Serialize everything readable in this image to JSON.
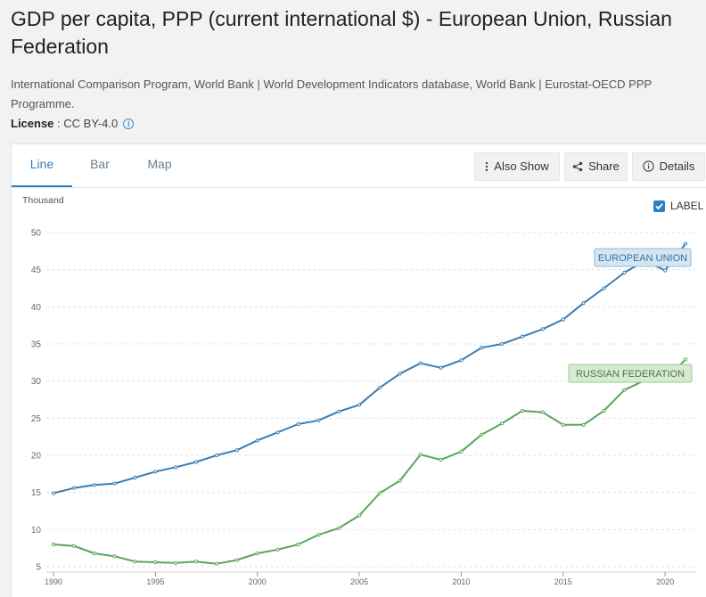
{
  "header": {
    "title": "GDP per capita, PPP (current international $) - European Union, Russian Federation",
    "source": "International Comparison Program, World Bank | World Development Indicators database, World Bank | Eurostat-OECD PPP Programme.",
    "license_label": "License",
    "license_value": " : CC BY-4.0"
  },
  "tabs": [
    {
      "label": "Line"
    },
    {
      "label": "Bar"
    },
    {
      "label": "Map"
    }
  ],
  "toolbar": {
    "also_show": "Also Show",
    "share": "Share",
    "details": "Details"
  },
  "label_toggle": {
    "text": "LABEL",
    "checked": true
  },
  "colors": {
    "eu": "#3a7db3",
    "ru": "#5aa55a",
    "eu_label_bg": "#d5e6f3",
    "ru_label_bg": "#d6ead2"
  },
  "chart_data": {
    "type": "line",
    "title": "GDP per capita, PPP (current international $) - European Union, Russian Federation",
    "ylabel": "Thousand",
    "xlabel": "",
    "ylim": [
      5,
      50
    ],
    "xlim": [
      1990,
      2021
    ],
    "y_ticks": [
      5,
      10,
      15,
      20,
      25,
      30,
      35,
      40,
      45,
      50
    ],
    "x_ticks": [
      1990,
      1995,
      2000,
      2005,
      2010,
      2015,
      2020
    ],
    "grid": true,
    "x": [
      1990,
      1991,
      1992,
      1993,
      1994,
      1995,
      1996,
      1997,
      1998,
      1999,
      2000,
      2001,
      2002,
      2003,
      2004,
      2005,
      2006,
      2007,
      2008,
      2009,
      2010,
      2011,
      2012,
      2013,
      2014,
      2015,
      2016,
      2017,
      2018,
      2019,
      2020,
      2021
    ],
    "series": [
      {
        "name": "EUROPEAN UNION",
        "values": [
          14.9,
          15.6,
          16.0,
          16.2,
          17.0,
          17.8,
          18.4,
          19.1,
          20.0,
          20.7,
          22.0,
          23.1,
          24.2,
          24.7,
          25.9,
          26.8,
          29.1,
          31.0,
          32.4,
          31.8,
          32.8,
          34.5,
          35.0,
          36.0,
          37.0,
          38.3,
          40.5,
          42.5,
          44.6,
          46.2,
          44.9,
          48.5
        ]
      },
      {
        "name": "RUSSIAN FEDERATION",
        "values": [
          8.0,
          7.8,
          6.8,
          6.4,
          5.7,
          5.6,
          5.5,
          5.7,
          5.4,
          5.9,
          6.8,
          7.3,
          8.0,
          9.3,
          10.2,
          11.9,
          14.9,
          16.6,
          20.1,
          19.4,
          20.5,
          22.8,
          24.3,
          26.0,
          25.8,
          24.1,
          24.1,
          26.0,
          28.8,
          30.1,
          30.2,
          32.9
        ]
      }
    ],
    "annotations": [
      "EUROPEAN UNION",
      "RUSSIAN FEDERATION"
    ]
  }
}
